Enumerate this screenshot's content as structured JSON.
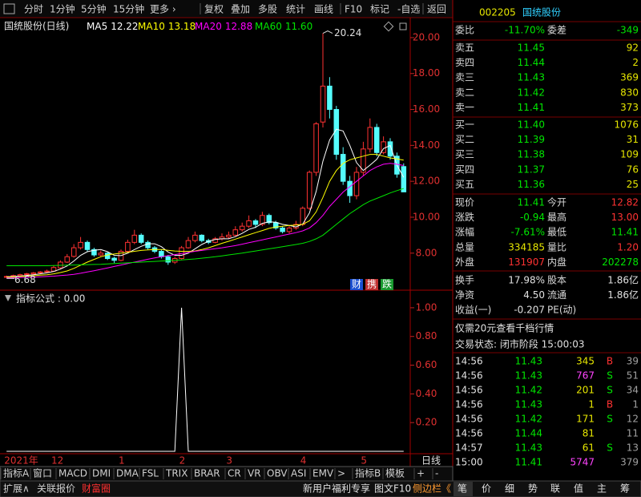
{
  "toolbar": {
    "items": [
      "分时",
      "1分钟",
      "5分钟",
      "15分钟",
      "更多 ›",
      "复权",
      "叠加",
      "多股",
      "统计",
      "画线",
      "F10",
      "标记",
      "-自选",
      "返回"
    ]
  },
  "chart_data": [
    {
      "type": "candlestick",
      "title": "国统股份(日线)",
      "up_color": "#ff3232",
      "down_color": "#54fcfc",
      "ylim": [
        6.25,
        20.8
      ],
      "yticks": [
        {
          "value": 8,
          "label": "8.00"
        },
        {
          "value": 10,
          "label": "10.00"
        },
        {
          "value": 12,
          "label": "12.00"
        },
        {
          "value": 14,
          "label": "14.00"
        },
        {
          "value": 16,
          "label": "16.00"
        },
        {
          "value": 18,
          "label": "18.00"
        },
        {
          "value": 20,
          "label": "20.00"
        }
      ],
      "grid": false,
      "categories": [
        "2021年",
        null,
        null,
        null,
        null,
        null,
        null,
        "12",
        null,
        null,
        null,
        null,
        null,
        null,
        null,
        null,
        null,
        "1",
        null,
        null,
        null,
        null,
        null,
        null,
        null,
        null,
        "2",
        null,
        null,
        null,
        null,
        null,
        null,
        "3",
        null,
        null,
        null,
        null,
        null,
        null,
        null,
        null,
        null,
        null,
        "4",
        null,
        null,
        null,
        null,
        null,
        null,
        null,
        null,
        "5",
        null,
        null,
        null,
        null,
        null,
        null
      ],
      "ohlc": [
        [
          6.68,
          6.75,
          6.68,
          6.7
        ],
        [
          6.7,
          6.8,
          6.68,
          6.75
        ],
        [
          6.74,
          6.85,
          6.7,
          6.8
        ],
        [
          6.82,
          6.9,
          6.76,
          6.85
        ],
        [
          6.84,
          6.95,
          6.8,
          6.9
        ],
        [
          6.92,
          7.0,
          6.86,
          6.95
        ],
        [
          6.96,
          7.08,
          6.92,
          7.0
        ],
        [
          7.0,
          7.3,
          6.98,
          7.2
        ],
        [
          7.18,
          7.6,
          7.12,
          7.5
        ],
        [
          7.5,
          7.95,
          7.45,
          7.8
        ],
        [
          7.82,
          8.5,
          7.75,
          8.3
        ],
        [
          8.3,
          8.9,
          8.2,
          8.6
        ],
        [
          8.6,
          8.7,
          8.1,
          8.2
        ],
        [
          8.2,
          8.3,
          7.8,
          7.9
        ],
        [
          7.9,
          8.15,
          7.82,
          8.0
        ],
        [
          8.0,
          8.05,
          7.62,
          7.7
        ],
        [
          7.72,
          7.8,
          7.45,
          7.6
        ],
        [
          7.6,
          8.2,
          7.55,
          8.1
        ],
        [
          8.1,
          8.75,
          8.05,
          8.6
        ],
        [
          8.6,
          9.3,
          8.5,
          9.0
        ],
        [
          9.0,
          9.1,
          8.5,
          8.6
        ],
        [
          8.6,
          8.7,
          8.2,
          8.3
        ],
        [
          8.3,
          8.4,
          8.0,
          8.1
        ],
        [
          8.1,
          8.2,
          7.7,
          7.8
        ],
        [
          7.8,
          7.9,
          7.35,
          7.5
        ],
        [
          7.5,
          7.8,
          7.4,
          7.7
        ],
        [
          7.7,
          8.4,
          7.65,
          8.3
        ],
        [
          8.3,
          8.9,
          8.25,
          8.7
        ],
        [
          8.7,
          9.2,
          8.6,
          9.0
        ],
        [
          9.0,
          9.05,
          8.6,
          8.7
        ],
        [
          8.7,
          8.8,
          8.5,
          8.6
        ],
        [
          8.6,
          8.9,
          8.55,
          8.8
        ],
        [
          8.8,
          9.1,
          8.7,
          8.9
        ],
        [
          8.9,
          9.2,
          8.8,
          9.0
        ],
        [
          9.0,
          9.5,
          8.95,
          9.3
        ],
        [
          9.3,
          9.7,
          9.2,
          9.5
        ],
        [
          9.5,
          10.1,
          9.4,
          9.8
        ],
        [
          9.8,
          9.9,
          9.4,
          9.6
        ],
        [
          9.6,
          10.3,
          9.5,
          10.1
        ],
        [
          10.1,
          10.2,
          9.6,
          9.7
        ],
        [
          9.7,
          9.8,
          9.3,
          9.4
        ],
        [
          9.4,
          9.5,
          9.1,
          9.2
        ],
        [
          9.2,
          9.5,
          9.1,
          9.4
        ],
        [
          9.4,
          9.8,
          9.3,
          9.6
        ],
        [
          9.6,
          10.6,
          9.5,
          10.5
        ],
        [
          10.5,
          12.6,
          10.4,
          12.5
        ],
        [
          12.5,
          15.3,
          12.3,
          15.2
        ],
        [
          15.3,
          20.24,
          15.0,
          17.3
        ],
        [
          17.3,
          17.8,
          15.5,
          16.0
        ],
        [
          16.0,
          16.2,
          13.2,
          13.5
        ],
        [
          13.5,
          13.9,
          11.8,
          12.0
        ],
        [
          12.0,
          12.3,
          10.8,
          11.2
        ],
        [
          11.2,
          12.8,
          11.0,
          12.5
        ],
        [
          12.5,
          14.2,
          12.3,
          13.8
        ],
        [
          13.8,
          15.5,
          13.6,
          15.0
        ],
        [
          15.0,
          15.2,
          13.4,
          13.6
        ],
        [
          13.6,
          14.5,
          13.5,
          14.2
        ],
        [
          14.2,
          14.4,
          13.2,
          13.4
        ],
        [
          13.4,
          13.6,
          12.2,
          12.4
        ],
        [
          12.82,
          13.0,
          11.41,
          11.41
        ]
      ],
      "series": [
        {
          "name": "MA5",
          "legend_value": "12.22",
          "color": "#ffffff",
          "values": [
            6.68,
            6.7,
            6.72,
            6.76,
            6.8,
            6.85,
            6.9,
            6.98,
            7.11,
            7.29,
            7.56,
            7.88,
            8.08,
            8.16,
            8.2,
            8.08,
            7.88,
            7.86,
            8.0,
            8.2,
            8.38,
            8.52,
            8.52,
            8.36,
            8.06,
            7.88,
            7.88,
            8.0,
            8.24,
            8.48,
            8.66,
            8.76,
            8.8,
            8.8,
            8.92,
            9.1,
            9.32,
            9.44,
            9.66,
            9.74,
            9.72,
            9.6,
            9.54,
            9.46,
            9.62,
            10.24,
            11.44,
            13.12,
            14.3,
            14.9,
            14.8,
            14.0,
            13.04,
            12.6,
            12.9,
            13.22,
            13.82,
            14.0,
            12.9,
            12.22
          ]
        },
        {
          "name": "MA10",
          "legend_value": "13.18",
          "color": "#ffff00",
          "values": [
            6.66,
            6.68,
            6.7,
            6.72,
            6.74,
            6.77,
            6.8,
            6.85,
            6.92,
            7.01,
            7.15,
            7.33,
            7.5,
            7.65,
            7.8,
            7.9,
            7.95,
            8.0,
            8.05,
            8.1,
            8.15,
            8.18,
            8.2,
            8.2,
            8.16,
            8.12,
            8.1,
            8.1,
            8.12,
            8.2,
            8.3,
            8.42,
            8.55,
            8.66,
            8.78,
            8.9,
            9.02,
            9.14,
            9.26,
            9.38,
            9.46,
            9.5,
            9.54,
            9.56,
            9.6,
            9.8,
            10.3,
            11.1,
            12.0,
            12.6,
            13.0,
            13.2,
            13.3,
            13.4,
            13.5,
            13.5,
            13.4,
            13.3,
            13.25,
            13.18
          ]
        },
        {
          "name": "MA20",
          "legend_value": "12.88",
          "color": "#ff00ff",
          "values": [
            6.62,
            6.63,
            6.64,
            6.65,
            6.66,
            6.68,
            6.7,
            6.72,
            6.75,
            6.78,
            6.82,
            6.88,
            6.95,
            7.02,
            7.1,
            7.18,
            7.26,
            7.34,
            7.42,
            7.5,
            7.58,
            7.66,
            7.73,
            7.8,
            7.86,
            7.92,
            7.98,
            8.04,
            8.1,
            8.15,
            8.2,
            8.25,
            8.3,
            8.36,
            8.42,
            8.5,
            8.58,
            8.66,
            8.74,
            8.82,
            8.9,
            8.98,
            9.06,
            9.14,
            9.24,
            9.4,
            9.7,
            10.1,
            10.6,
            11.0,
            11.4,
            11.7,
            12.0,
            12.3,
            12.6,
            12.8,
            12.95,
            13.0,
            12.95,
            12.88
          ]
        },
        {
          "name": "MA60",
          "legend_value": "11.60",
          "color": "#00e600",
          "values": [
            7.3,
            7.3,
            7.3,
            7.3,
            7.3,
            7.3,
            7.3,
            7.31,
            7.32,
            7.33,
            7.34,
            7.35,
            7.36,
            7.37,
            7.38,
            7.4,
            7.42,
            7.44,
            7.46,
            7.48,
            7.5,
            7.52,
            7.54,
            7.56,
            7.58,
            7.6,
            7.62,
            7.65,
            7.68,
            7.72,
            7.76,
            7.8,
            7.85,
            7.9,
            7.95,
            8.0,
            8.06,
            8.12,
            8.18,
            8.24,
            8.3,
            8.36,
            8.42,
            8.48,
            8.55,
            8.65,
            8.8,
            9.0,
            9.3,
            9.6,
            9.9,
            10.2,
            10.45,
            10.7,
            10.9,
            11.05,
            11.2,
            11.35,
            11.48,
            11.6
          ]
        }
      ],
      "badges": [
        "财",
        "携",
        "跌"
      ],
      "x_axis_right_label": "日线"
    },
    {
      "type": "line",
      "title": "指标公式 : 0.00",
      "color": "#ffffff",
      "ylim": [
        0,
        1.1
      ],
      "yticks": [
        {
          "value": 0.2,
          "label": "0.20"
        },
        {
          "value": 0.4,
          "label": "0.40"
        },
        {
          "value": 0.6,
          "label": "0.60"
        },
        {
          "value": 0.8,
          "label": "0.80"
        },
        {
          "value": 1,
          "label": "1.00"
        }
      ],
      "values": [
        0,
        0,
        0,
        0,
        0,
        0,
        0,
        0,
        0,
        0,
        0,
        0,
        0,
        0,
        0,
        0,
        0,
        0,
        0,
        0,
        0,
        0,
        0,
        0,
        0,
        0,
        1,
        0,
        0,
        0,
        0,
        0,
        0,
        0,
        0,
        0,
        0,
        0,
        0,
        0,
        0,
        0,
        0,
        0,
        0,
        0,
        0,
        0,
        0,
        0,
        0,
        0,
        0,
        0,
        0,
        0,
        0,
        0,
        0,
        0
      ]
    }
  ],
  "indicator_tabs": [
    "指标A",
    "窗口",
    "MACD",
    "DMI",
    "DMA",
    "FSL",
    "TRIX",
    "BRAR",
    "CR",
    "VR",
    "OBV",
    "ASI",
    "EMV",
    ">",
    "指标B",
    "模板",
    "+",
    "-"
  ],
  "footer": {
    "items": [
      "扩展∧",
      "关联报价",
      "财富圈",
      "新用户福利专享",
      "图文F10",
      "侧边栏《"
    ]
  },
  "quote": {
    "code": "002205",
    "name": "国统股份",
    "weibi": {
      "label": "委比",
      "value": "-11.70%"
    },
    "weicha": {
      "label": "委差",
      "value": "-349"
    },
    "asks": [
      {
        "label": "卖五",
        "price": "11.45",
        "volume": "92"
      },
      {
        "label": "卖四",
        "price": "11.44",
        "volume": "2"
      },
      {
        "label": "卖三",
        "price": "11.43",
        "volume": "369"
      },
      {
        "label": "卖二",
        "price": "11.42",
        "volume": "830"
      },
      {
        "label": "卖一",
        "price": "11.41",
        "volume": "373"
      }
    ],
    "bids": [
      {
        "label": "买一",
        "price": "11.40",
        "volume": "1076"
      },
      {
        "label": "买二",
        "price": "11.39",
        "volume": "31"
      },
      {
        "label": "买三",
        "price": "11.38",
        "volume": "109"
      },
      {
        "label": "买四",
        "price": "11.37",
        "volume": "76"
      },
      {
        "label": "买五",
        "price": "11.36",
        "volume": "25"
      }
    ],
    "stats": [
      {
        "l1": "现价",
        "v1": "11.41",
        "c1": "#00e600",
        "l2": "今开",
        "v2": "12.82",
        "c2": "#ff3232"
      },
      {
        "l1": "涨跌",
        "v1": "-0.94",
        "c1": "#00e600",
        "l2": "最高",
        "v2": "13.00",
        "c2": "#ff3232"
      },
      {
        "l1": "涨幅",
        "v1": "-7.61%",
        "c1": "#00e600",
        "l2": "最低",
        "v2": "11.41",
        "c2": "#00e600"
      },
      {
        "l1": "总量",
        "v1": "334185",
        "c1": "#e6e600",
        "l2": "量比",
        "v2": "1.20",
        "c2": "#ff3232"
      },
      {
        "l1": "外盘",
        "v1": "131907",
        "c1": "#ff3232",
        "l2": "内盘",
        "v2": "202278",
        "c2": "#00e600"
      }
    ],
    "stats2": [
      {
        "l1": "换手",
        "v1": "17.98%",
        "l2": "股本",
        "v2": "1.86亿"
      },
      {
        "l1": "净资",
        "v1": "4.50",
        "l2": "流通",
        "v2": "1.86亿"
      },
      {
        "l1": "收益(一)",
        "v1": "-0.207",
        "l2": "PE(动)",
        "v2": ""
      }
    ],
    "promo": "仅需20元查看千档行情",
    "status": "交易状态: 闭市阶段 15:00:03",
    "trades": [
      {
        "time": "14:56",
        "price": "11.43",
        "volume": "345",
        "side": "B",
        "count": "39",
        "vcolor": "#e6e600"
      },
      {
        "time": "14:56",
        "price": "11.43",
        "volume": "767",
        "side": "S",
        "count": "51",
        "vcolor": "#ff44ff"
      },
      {
        "time": "14:56",
        "price": "11.42",
        "volume": "201",
        "side": "S",
        "count": "34",
        "vcolor": "#e6e600"
      },
      {
        "time": "14:56",
        "price": "11.43",
        "volume": "1",
        "side": "B",
        "count": "1",
        "vcolor": "#e6e600"
      },
      {
        "time": "14:56",
        "price": "11.42",
        "volume": "171",
        "side": "S",
        "count": "12",
        "vcolor": "#e6e600"
      },
      {
        "time": "14:56",
        "price": "11.44",
        "volume": "81",
        "side": "",
        "count": "11",
        "vcolor": "#e6e600"
      },
      {
        "time": "14:57",
        "price": "11.43",
        "volume": "61",
        "side": "S",
        "count": "13",
        "vcolor": "#e6e600"
      },
      {
        "time": "15:00",
        "price": "11.41",
        "volume": "5747",
        "side": "",
        "count": "379",
        "vcolor": "#ff44ff"
      }
    ],
    "tabs": [
      "笔",
      "价",
      "细",
      "势",
      "联",
      "值",
      "主",
      "筹"
    ]
  }
}
